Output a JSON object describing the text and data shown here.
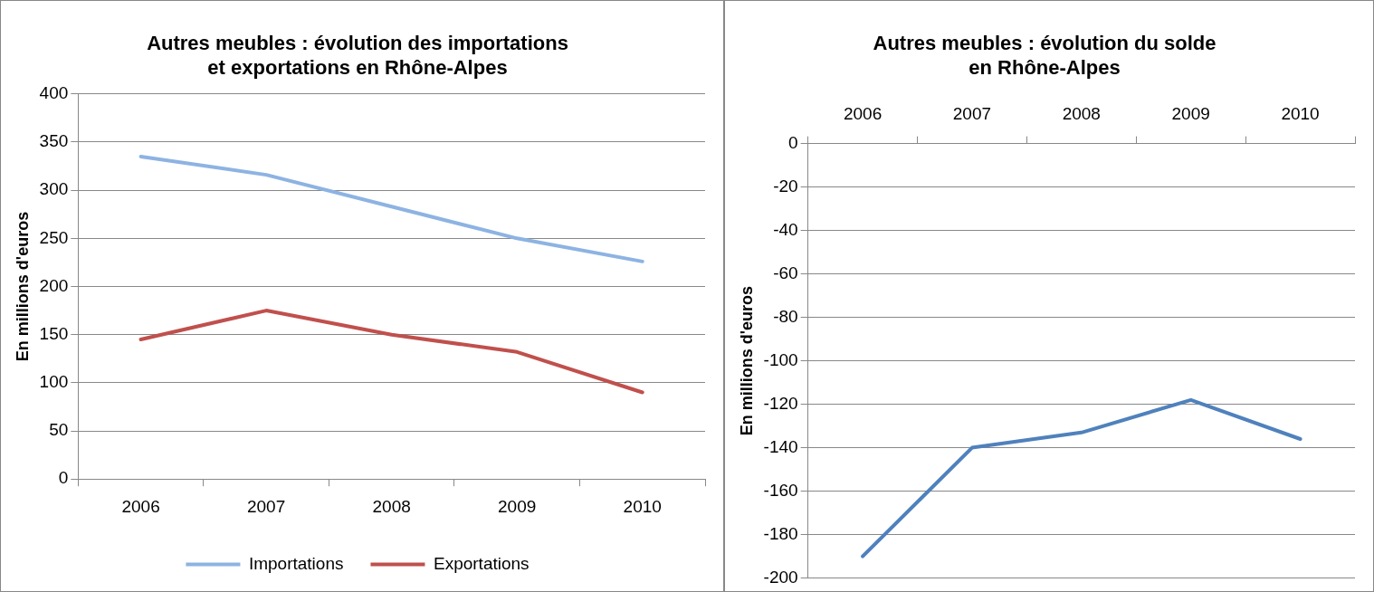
{
  "chart_data": [
    {
      "type": "line",
      "title": "Autres meubles : évolution des importations\net exportations en Rhône-Alpes",
      "ylabel": "En millions d'euros",
      "categories": [
        "2006",
        "2007",
        "2008",
        "2009",
        "2010"
      ],
      "series": [
        {
          "name": "Importations",
          "color": "#8db3e2",
          "values": [
            335,
            316,
            283,
            250,
            226
          ]
        },
        {
          "name": "Exportations",
          "color": "#c0504d",
          "values": [
            145,
            175,
            150,
            132,
            90
          ]
        }
      ],
      "ylim": [
        0,
        400
      ],
      "yticks": [
        0,
        50,
        100,
        150,
        200,
        250,
        300,
        350,
        400
      ],
      "grid": "y",
      "legend": "bottom"
    },
    {
      "type": "line",
      "title": "Autres meubles : évolution du solde\nen Rhône-Alpes",
      "ylabel": "En millions d'euros",
      "categories": [
        "2006",
        "2007",
        "2008",
        "2009",
        "2010"
      ],
      "series": [
        {
          "color": "#4f81bd",
          "values": [
            -190,
            -140,
            -133,
            -118,
            -136
          ]
        }
      ],
      "ylim": [
        -200,
        0
      ],
      "yticks": [
        -200,
        -180,
        -160,
        -140,
        -120,
        -100,
        -80,
        -60,
        -40,
        -20,
        0
      ],
      "grid": "y"
    }
  ]
}
